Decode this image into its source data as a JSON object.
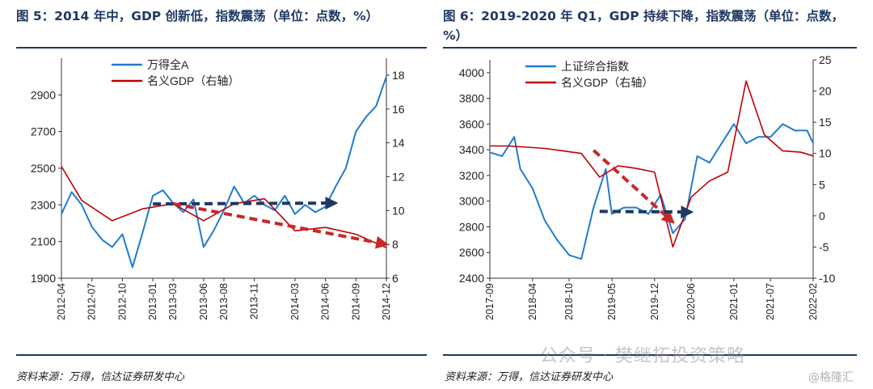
{
  "left_panel": {
    "title": "图 5：2014 年中，GDP 创新低，指数震荡（单位：点数，%）",
    "source": "资料来源：万得，信达证券研发中心"
  },
  "right_panel": {
    "title": "图 6：2019-2020 年 Q1，GDP 持续下降，指数震荡（单位：点数，%）",
    "source": "资料来源：万得，信达证券研发中心"
  },
  "watermark": "公众号 · 樊继拓投资策略",
  "brand": "@格隆汇",
  "colors": {
    "index": "#1f7bd1",
    "gdp": "#c00000",
    "title": "#1f3864",
    "arrow_blue": "#1f3864",
    "arrow_red": "#c8282a"
  },
  "chart_data": [
    {
      "type": "line",
      "xlabel": "",
      "ylabel": "",
      "x_ticks": [
        "2012-04",
        "2012-07",
        "2012-10",
        "2013-01",
        "2013-03",
        "2013-06",
        "2013-08",
        "2013-11",
        "2014-03",
        "2014-06",
        "2014-09",
        "2014-12"
      ],
      "ylim": [
        1900,
        3100
      ],
      "y_ticks": [
        1900,
        2100,
        2300,
        2500,
        2700,
        2900
      ],
      "y2lim": [
        6,
        19
      ],
      "y2_ticks": [
        6,
        8,
        10,
        12,
        14,
        16,
        18
      ],
      "legend_position": "top",
      "grid": false,
      "series": [
        {
          "name": "万得全A",
          "axis": "left",
          "x": [
            "2012-04",
            "2012-05",
            "2012-06",
            "2012-07",
            "2012-08",
            "2012-09",
            "2012-10",
            "2012-11",
            "2012-12",
            "2013-01",
            "2013-02",
            "2013-03",
            "2013-04",
            "2013-05",
            "2013-06",
            "2013-07",
            "2013-08",
            "2013-09",
            "2013-10",
            "2013-11",
            "2013-12",
            "2014-01",
            "2014-02",
            "2014-03",
            "2014-04",
            "2014-05",
            "2014-06",
            "2014-07",
            "2014-08",
            "2014-09",
            "2014-10",
            "2014-11",
            "2014-12"
          ],
          "values": [
            2250,
            2370,
            2300,
            2180,
            2110,
            2070,
            2140,
            1960,
            2150,
            2350,
            2380,
            2310,
            2260,
            2330,
            2070,
            2160,
            2270,
            2400,
            2310,
            2350,
            2300,
            2270,
            2350,
            2250,
            2300,
            2260,
            2290,
            2400,
            2500,
            2700,
            2780,
            2840,
            3000
          ]
        },
        {
          "name": "名义GDP（右轴）",
          "axis": "right",
          "x": [
            "2012-04",
            "2012-06",
            "2012-09",
            "2012-12",
            "2013-03",
            "2013-06",
            "2013-09",
            "2013-12",
            "2014-03",
            "2014-06",
            "2014-09",
            "2014-12"
          ],
          "values": [
            12.6,
            10.6,
            9.4,
            10.1,
            10.4,
            9.4,
            10.4,
            10.7,
            8.8,
            9.0,
            8.6,
            7.8
          ]
        }
      ],
      "annotations": [
        {
          "style": "dashed-arrow",
          "color": "blue",
          "from": [
            "2013-01",
            2305
          ],
          "to": [
            "2014-07",
            2310
          ]
        },
        {
          "style": "dashed-arrow",
          "color": "red",
          "from_right_axis": [
            "2013-03",
            10.4
          ],
          "to_right_axis": [
            "2014-12",
            8.0
          ]
        }
      ]
    },
    {
      "type": "line",
      "xlabel": "",
      "ylabel": "",
      "x_ticks": [
        "2017-09",
        "2018-04",
        "2018-10",
        "2019-05",
        "2019-12",
        "2020-06",
        "2021-01",
        "2021-07",
        "2022-02"
      ],
      "ylim": [
        2400,
        4100
      ],
      "y_ticks": [
        2400,
        2600,
        2800,
        3000,
        3200,
        3400,
        3600,
        3800,
        4000
      ],
      "y2lim": [
        -10,
        25
      ],
      "y2_ticks": [
        -10,
        -5,
        0,
        5,
        10,
        15,
        20,
        25
      ],
      "legend_position": "top",
      "grid": false,
      "series": [
        {
          "name": "上证综合指数",
          "axis": "left",
          "x": [
            "2017-09",
            "2017-11",
            "2018-01",
            "2018-02",
            "2018-04",
            "2018-06",
            "2018-08",
            "2018-10",
            "2018-12",
            "2019-02",
            "2019-04",
            "2019-05",
            "2019-07",
            "2019-09",
            "2019-11",
            "2020-01",
            "2020-03",
            "2020-05",
            "2020-07",
            "2020-09",
            "2020-11",
            "2021-01",
            "2021-03",
            "2021-05",
            "2021-07",
            "2021-09",
            "2021-11",
            "2022-01",
            "2022-02"
          ],
          "values": [
            3380,
            3350,
            3500,
            3250,
            3100,
            2850,
            2700,
            2580,
            2550,
            2950,
            3250,
            2900,
            2950,
            2950,
            2900,
            3050,
            2750,
            2860,
            3350,
            3300,
            3450,
            3600,
            3450,
            3500,
            3500,
            3600,
            3550,
            3550,
            3450
          ]
        },
        {
          "name": "名义GDP（右轴）",
          "axis": "right",
          "x": [
            "2017-09",
            "2017-12",
            "2018-03",
            "2018-06",
            "2018-09",
            "2018-12",
            "2019-03",
            "2019-06",
            "2019-09",
            "2019-12",
            "2020-03",
            "2020-06",
            "2020-09",
            "2020-12",
            "2021-03",
            "2021-06",
            "2021-09",
            "2021-12",
            "2022-02"
          ],
          "values": [
            11.2,
            11.2,
            11.0,
            10.8,
            10.4,
            10.0,
            6.2,
            8.0,
            7.6,
            7.0,
            -5.0,
            3.0,
            5.6,
            7.0,
            21.6,
            13.0,
            10.4,
            10.2,
            9.6
          ]
        }
      ],
      "annotations": [
        {
          "style": "dashed-arrow",
          "color": "red",
          "from_right_axis": [
            "2019-02",
            10.5
          ],
          "to_right_axis": [
            "2020-03",
            -1.0
          ]
        },
        {
          "style": "dashed-arrow",
          "color": "blue",
          "from": [
            "2019-03",
            2920
          ],
          "to": [
            "2020-06",
            2915
          ]
        }
      ]
    }
  ]
}
